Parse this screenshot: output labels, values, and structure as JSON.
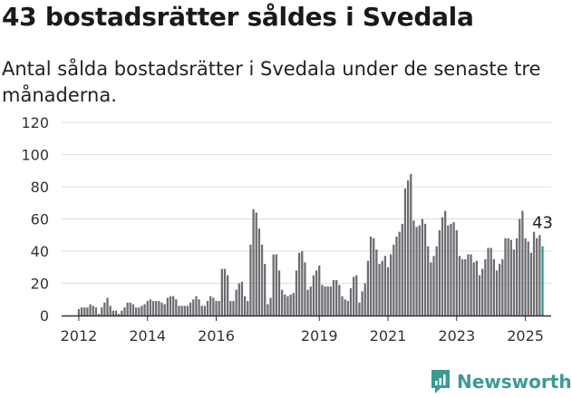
{
  "title": "43 bostadsrätter såldes i Svedala",
  "subtitle": "Antal sålda bostadsrätter i Svedala under de senaste tre månaderna.",
  "brand": {
    "name": "Newsworthy",
    "color": "#3c9a94",
    "icon": "newsworthy-logo-icon"
  },
  "colors": {
    "bar": "#6d6c72",
    "highlight": "#2a9d8f",
    "grid": "#dddddd",
    "axis": "#333333"
  },
  "chart_data": {
    "type": "bar",
    "x_start": "2012-01",
    "xlim": [
      "2011-07",
      "2025-10"
    ],
    "ylim": [
      0,
      120
    ],
    "yticks": [
      0,
      20,
      40,
      60,
      80,
      100,
      120
    ],
    "ytick_labels": [
      "0",
      "20",
      "40",
      "60",
      "80",
      "100",
      "120"
    ],
    "xticks": [
      "2012-01",
      "2014-01",
      "2016-01",
      "2019-01",
      "2021-01",
      "2023-01",
      "2025-01"
    ],
    "xtick_labels": [
      "2012",
      "2014",
      "2016",
      "2019",
      "2021",
      "2023",
      "2025"
    ],
    "grid": true,
    "annotation": {
      "text": "43",
      "at": "last"
    },
    "values": [
      4,
      5,
      5,
      5,
      7,
      6,
      5,
      1,
      5,
      8,
      11,
      6,
      3,
      3,
      1,
      3,
      5,
      8,
      8,
      7,
      5,
      5,
      6,
      7,
      9,
      10,
      9,
      9,
      9,
      8,
      7,
      11,
      12,
      12,
      10,
      6,
      6,
      6,
      6,
      8,
      10,
      12,
      10,
      6,
      6,
      9,
      12,
      11,
      9,
      9,
      29,
      29,
      25,
      9,
      9,
      16,
      20,
      21,
      12,
      9,
      44,
      66,
      64,
      54,
      44,
      32,
      7,
      11,
      38,
      38,
      28,
      16,
      13,
      12,
      13,
      14,
      28,
      39,
      40,
      33,
      16,
      18,
      25,
      28,
      31,
      19,
      18,
      18,
      18,
      22,
      22,
      19,
      12,
      10,
      9,
      17,
      24,
      25,
      8,
      15,
      20,
      34,
      49,
      48,
      41,
      32,
      34,
      37,
      30,
      38,
      44,
      49,
      52,
      57,
      79,
      84,
      88,
      59,
      55,
      56,
      60,
      57,
      43,
      33,
      37,
      43,
      53,
      61,
      65,
      56,
      57,
      58,
      53,
      37,
      35,
      35,
      38,
      38,
      33,
      34,
      25,
      29,
      35,
      42,
      42,
      35,
      28,
      32,
      35,
      48,
      48,
      47,
      41,
      48,
      60,
      65,
      48,
      46,
      39,
      52,
      48,
      50,
      43
    ]
  }
}
